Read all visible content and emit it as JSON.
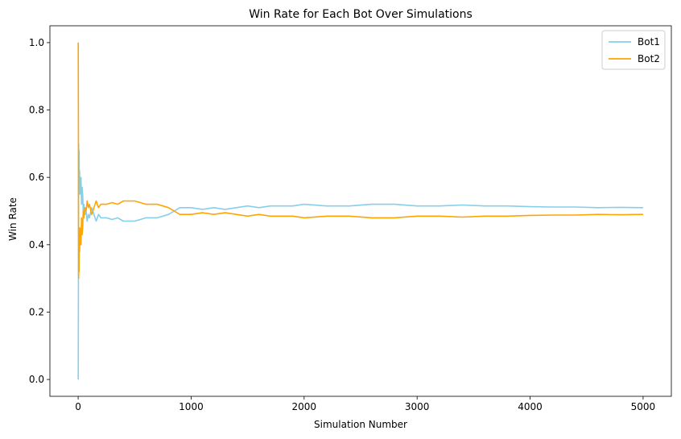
{
  "chart_data": {
    "type": "line",
    "title": "Win Rate for Each Bot Over Simulations",
    "xlabel": "Simulation Number",
    "ylabel": "Win Rate",
    "xlim": [
      -250,
      5250
    ],
    "ylim": [
      -0.05,
      1.05
    ],
    "xticks": [
      0,
      1000,
      2000,
      3000,
      4000,
      5000
    ],
    "xtick_labels": [
      "0",
      "1000",
      "2000",
      "3000",
      "4000",
      "5000"
    ],
    "yticks": [
      0.0,
      0.2,
      0.4,
      0.6,
      0.8,
      1.0
    ],
    "ytick_labels": [
      "0.0",
      "0.2",
      "0.4",
      "0.6",
      "0.8",
      "1.0"
    ],
    "grid": false,
    "legend_position": "top-right",
    "series": [
      {
        "name": "Bot1",
        "color": "#87CEEB",
        "x": [
          1,
          2,
          3,
          4,
          6,
          8,
          10,
          13,
          16,
          20,
          25,
          30,
          35,
          40,
          45,
          50,
          60,
          70,
          80,
          90,
          100,
          120,
          140,
          160,
          180,
          200,
          250,
          300,
          350,
          400,
          450,
          500,
          550,
          600,
          650,
          700,
          750,
          800,
          850,
          900,
          1000,
          1100,
          1200,
          1300,
          1400,
          1500,
          1600,
          1700,
          1800,
          1900,
          2000,
          2200,
          2400,
          2600,
          2800,
          3000,
          3200,
          3400,
          3600,
          3800,
          4000,
          4200,
          4400,
          4600,
          4800,
          5000
        ],
        "y": [
          0.0,
          0.25,
          0.5,
          0.7,
          0.6,
          0.68,
          0.58,
          0.62,
          0.55,
          0.57,
          0.6,
          0.52,
          0.57,
          0.55,
          0.5,
          0.52,
          0.49,
          0.5,
          0.47,
          0.49,
          0.48,
          0.51,
          0.49,
          0.47,
          0.49,
          0.48,
          0.48,
          0.475,
          0.48,
          0.47,
          0.47,
          0.47,
          0.475,
          0.48,
          0.48,
          0.48,
          0.485,
          0.49,
          0.5,
          0.51,
          0.51,
          0.505,
          0.51,
          0.505,
          0.51,
          0.515,
          0.51,
          0.515,
          0.515,
          0.515,
          0.52,
          0.515,
          0.515,
          0.52,
          0.52,
          0.515,
          0.515,
          0.518,
          0.515,
          0.515,
          0.513,
          0.512,
          0.512,
          0.51,
          0.511,
          0.51
        ]
      },
      {
        "name": "Bot2",
        "color": "#FFA500",
        "x": [
          1,
          2,
          3,
          4,
          6,
          8,
          10,
          13,
          16,
          20,
          25,
          30,
          35,
          40,
          45,
          50,
          60,
          70,
          80,
          90,
          100,
          120,
          140,
          160,
          180,
          200,
          250,
          300,
          350,
          400,
          450,
          500,
          550,
          600,
          650,
          700,
          750,
          800,
          850,
          900,
          1000,
          1100,
          1200,
          1300,
          1400,
          1500,
          1600,
          1700,
          1800,
          1900,
          2000,
          2200,
          2400,
          2600,
          2800,
          3000,
          3200,
          3400,
          3600,
          3800,
          4000,
          4200,
          4400,
          4600,
          4800,
          5000
        ],
        "y": [
          1.0,
          0.75,
          0.5,
          0.3,
          0.4,
          0.32,
          0.42,
          0.38,
          0.45,
          0.43,
          0.4,
          0.48,
          0.43,
          0.45,
          0.5,
          0.48,
          0.51,
          0.5,
          0.53,
          0.51,
          0.52,
          0.49,
          0.51,
          0.53,
          0.51,
          0.52,
          0.52,
          0.525,
          0.52,
          0.53,
          0.53,
          0.53,
          0.525,
          0.52,
          0.52,
          0.52,
          0.515,
          0.51,
          0.5,
          0.49,
          0.49,
          0.495,
          0.49,
          0.495,
          0.49,
          0.485,
          0.49,
          0.485,
          0.485,
          0.485,
          0.48,
          0.485,
          0.485,
          0.48,
          0.48,
          0.485,
          0.485,
          0.482,
          0.485,
          0.485,
          0.487,
          0.488,
          0.488,
          0.49,
          0.489,
          0.49
        ]
      }
    ]
  }
}
